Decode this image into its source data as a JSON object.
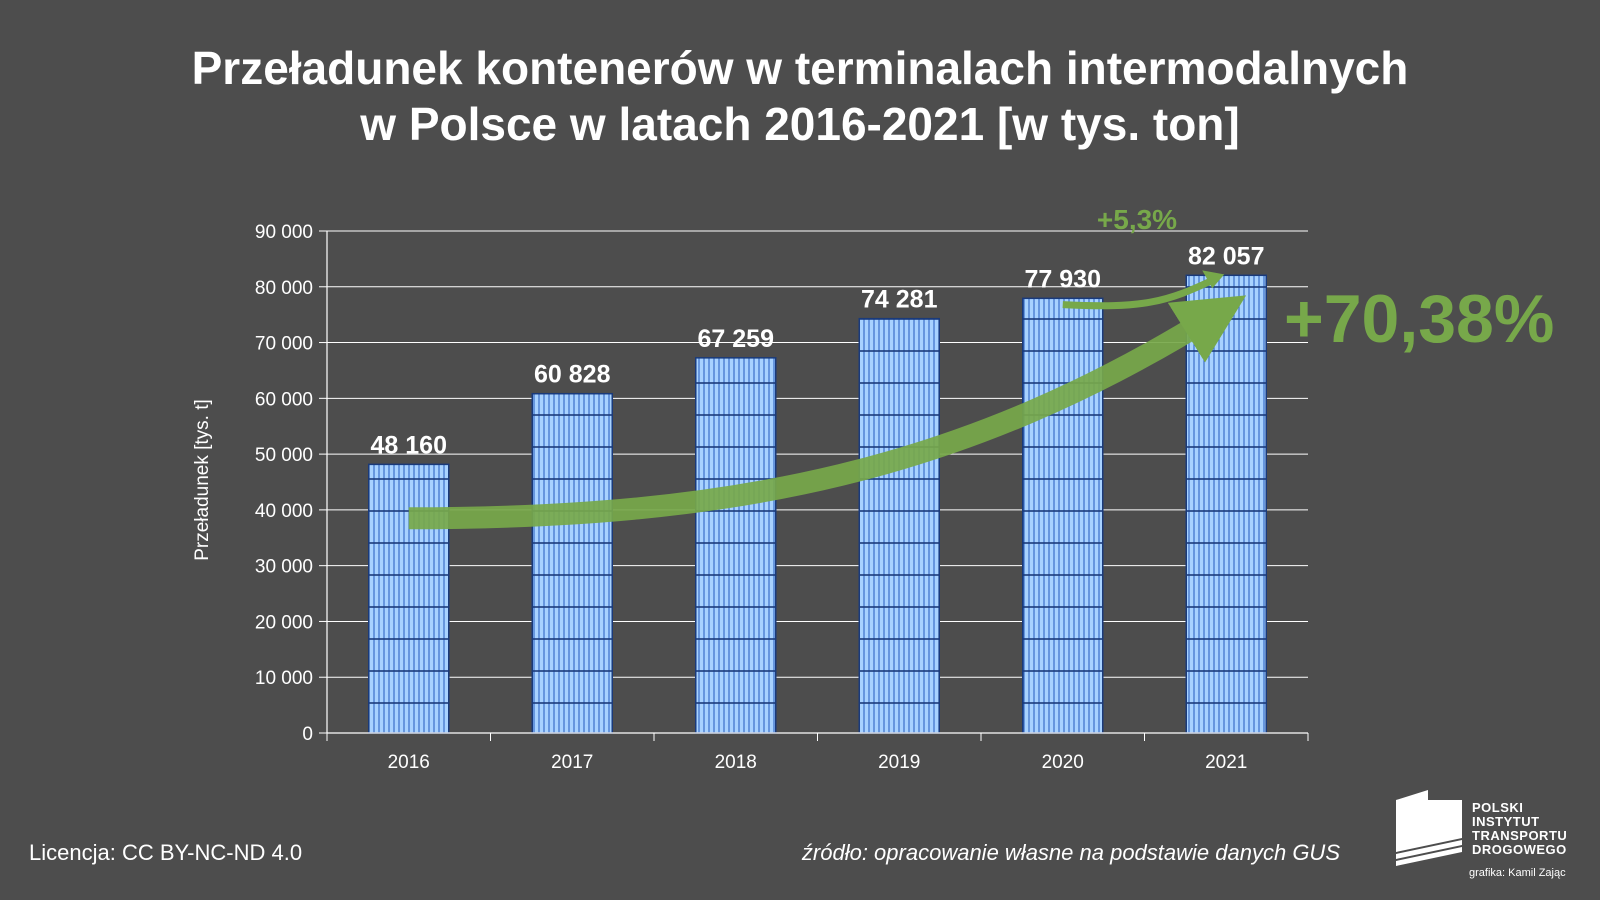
{
  "title_lines": [
    "Przeładunek kontenerów w terminalach intermodalnych",
    "w Polsce w latach 2016-2021 [w tys. ton]"
  ],
  "chart_data": {
    "type": "bar",
    "categories": [
      "2016",
      "2017",
      "2018",
      "2019",
      "2020",
      "2021"
    ],
    "values": [
      48160,
      60828,
      67259,
      74281,
      77930,
      82057
    ],
    "value_labels": [
      "48 160",
      "60 828",
      "67 259",
      "74 281",
      "77 930",
      "82 057"
    ],
    "ylabel": "Przeładunek [tys. t]",
    "ylim": [
      0,
      90000
    ],
    "yticks": [
      0,
      10000,
      20000,
      30000,
      40000,
      50000,
      60000,
      70000,
      80000,
      90000
    ],
    "ytick_labels": [
      "0",
      "10 000",
      "20 000",
      "30 000",
      "40 000",
      "50 000",
      "60 000",
      "70 000",
      "80 000",
      "90 000"
    ],
    "grid": true,
    "bar_color": "#99ccff",
    "bar_edge_color": "#1a3a7a",
    "annotations": {
      "small_growth": "+5,3%",
      "total_growth": "+70,38%",
      "arrow_color": "#77a84a"
    }
  },
  "footer": {
    "license": "Licencja: CC BY-NC-ND 4.0",
    "source": "źródło: opracowanie własne na podstawie danych GUS"
  },
  "logo": {
    "lines": [
      "POLSKI",
      "INSTYTUT",
      "TRANSPORTU",
      "DROGOWEGO"
    ],
    "credit": "grafika: Kamil Zając"
  }
}
